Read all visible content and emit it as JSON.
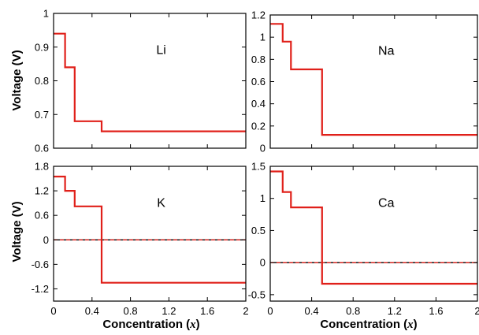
{
  "colors": {
    "series": "#e0201a",
    "zero_line": "#000000",
    "zero_line_dash": "#e0201a"
  },
  "axes": {
    "y_title": "Voltage (V)",
    "x_title_text": "Concentration (",
    "x_title_var": "x",
    "x_title_close": ")"
  },
  "chart_data": [
    {
      "type": "line",
      "step": true,
      "label": "Li",
      "xlim": [
        0,
        2
      ],
      "ylim": [
        0.6,
        1.0
      ],
      "x_ticks": [
        "0",
        "0.4",
        "0.8",
        "1.2",
        "1.6",
        "2"
      ],
      "y_ticks": [
        "0.6",
        "0.7",
        "0.8",
        "0.9",
        "1"
      ],
      "steps": [
        {
          "x_start": 0,
          "x_end": 0.12,
          "y": 0.94
        },
        {
          "x_start": 0.12,
          "x_end": 0.22,
          "y": 0.84
        },
        {
          "x_start": 0.22,
          "x_end": 0.5,
          "y": 0.68
        },
        {
          "x_start": 0.5,
          "x_end": 2.0,
          "y": 0.65
        }
      ],
      "zero_line": false
    },
    {
      "type": "line",
      "step": true,
      "label": "Na",
      "xlim": [
        0,
        2
      ],
      "ylim": [
        0,
        1.2
      ],
      "x_ticks": [
        "0",
        "0.4",
        "0.8",
        "1.2",
        "1.6",
        "2"
      ],
      "y_ticks": [
        "0",
        "0.2",
        "0.4",
        "0.6",
        "0.8",
        "1",
        "1.2"
      ],
      "steps": [
        {
          "x_start": 0,
          "x_end": 0.12,
          "y": 1.12
        },
        {
          "x_start": 0.12,
          "x_end": 0.2,
          "y": 0.96
        },
        {
          "x_start": 0.2,
          "x_end": 0.5,
          "y": 0.71
        },
        {
          "x_start": 0.5,
          "x_end": 2.0,
          "y": 0.12
        }
      ],
      "zero_line": false
    },
    {
      "type": "line",
      "step": true,
      "label": "K",
      "xlim": [
        0,
        2
      ],
      "ylim": [
        -1.5,
        1.8
      ],
      "x_ticks": [
        "0",
        "0.4",
        "0.8",
        "1.2",
        "1.6",
        "2"
      ],
      "y_ticks": [
        "-1.2",
        "-0.6",
        "0",
        "0.6",
        "1.2",
        "1.8"
      ],
      "steps": [
        {
          "x_start": 0,
          "x_end": 0.12,
          "y": 1.55
        },
        {
          "x_start": 0.12,
          "x_end": 0.22,
          "y": 1.2
        },
        {
          "x_start": 0.22,
          "x_end": 0.5,
          "y": 0.82
        },
        {
          "x_start": 0.5,
          "x_end": 2.0,
          "y": -1.05
        }
      ],
      "zero_line": true
    },
    {
      "type": "line",
      "step": true,
      "label": "Ca",
      "xlim": [
        0,
        2
      ],
      "ylim": [
        -0.6,
        1.5
      ],
      "x_ticks": [
        "0",
        "0.4",
        "0.8",
        "1.2",
        "1.6",
        "2"
      ],
      "y_ticks": [
        "-0.5",
        "0",
        "0.5",
        "1",
        "1.5"
      ],
      "steps": [
        {
          "x_start": 0,
          "x_end": 0.12,
          "y": 1.42
        },
        {
          "x_start": 0.12,
          "x_end": 0.2,
          "y": 1.1
        },
        {
          "x_start": 0.2,
          "x_end": 0.5,
          "y": 0.86
        },
        {
          "x_start": 0.5,
          "x_end": 2.0,
          "y": -0.33
        }
      ],
      "zero_line": true
    }
  ]
}
